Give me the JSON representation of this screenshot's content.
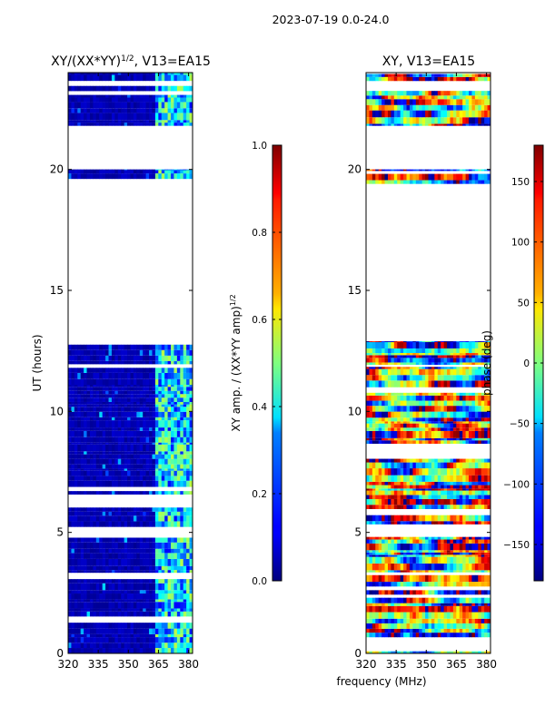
{
  "figure": {
    "suptitle": "2023-07-19 0.0-24.0",
    "shared_xlabel": "frequency (MHz)"
  },
  "chart_data": [
    {
      "type": "heatmap",
      "id": "amp",
      "title_main": "XY/(XX*YY)",
      "title_sup": "1/2",
      "title_tail": ", V13=EA15",
      "xlabel": "",
      "ylabel": "UT (hours)",
      "xlim": [
        320,
        382
      ],
      "ylim": [
        0,
        24
      ],
      "xticks": [
        320,
        335,
        350,
        365,
        380
      ],
      "yticks": [
        0,
        5,
        10,
        15,
        20
      ],
      "colorbar": {
        "label_main": "XY amp. / (XX*YY amp)",
        "label_sup": "1/2",
        "range": [
          0.0,
          1.0
        ],
        "ticks": [
          "0.0",
          "0.2",
          "0.4",
          "0.6",
          "0.8",
          "1.0"
        ],
        "tick_values": [
          0.0,
          0.2,
          0.4,
          0.6,
          0.8,
          1.0
        ]
      },
      "data_coverage_hours": [
        [
          0,
          12.9
        ],
        [
          19.4,
          20.0
        ],
        [
          21.8,
          24.0
        ]
      ],
      "typical_values": {
        "320-362 MHz": 0.05,
        "362-382 MHz": "0.2-0.5"
      }
    },
    {
      "type": "heatmap",
      "id": "phase",
      "title_main": "XY, V13=EA15",
      "xlabel": "frequency (MHz)",
      "ylabel": "",
      "xlim": [
        320,
        382
      ],
      "ylim": [
        0,
        24
      ],
      "xticks": [
        320,
        335,
        350,
        365,
        380
      ],
      "yticks": [
        0,
        5,
        10,
        15,
        20
      ],
      "colorbar": {
        "label_main": "phase (deg)",
        "range": [
          -180,
          180
        ],
        "ticks": [
          "150",
          "100",
          "50",
          "0",
          "−50",
          "−100",
          "−150"
        ],
        "tick_values": [
          150,
          100,
          50,
          0,
          -50,
          -100,
          -150
        ]
      },
      "data_coverage_hours": [
        [
          0,
          12.9
        ],
        [
          19.4,
          20.0
        ],
        [
          21.8,
          24.0
        ]
      ]
    }
  ],
  "colors": {
    "jet_low": "#00007f",
    "jet_high": "#7f0000"
  }
}
